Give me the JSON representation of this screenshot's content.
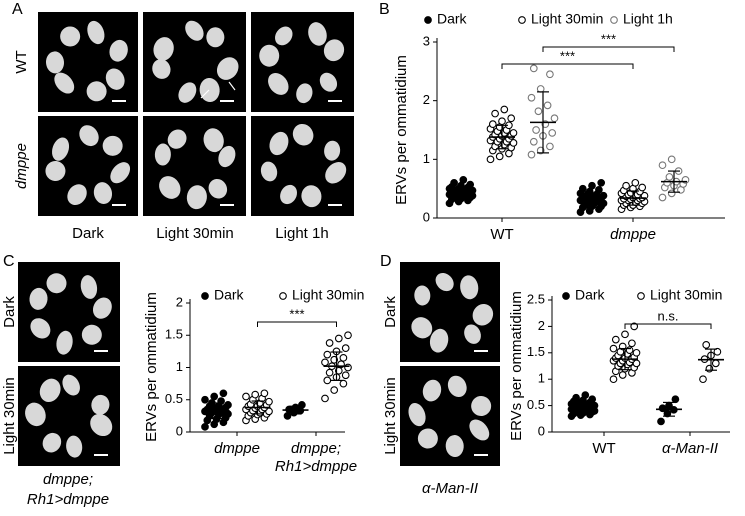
{
  "panels": {
    "A": {
      "letter": "A",
      "rows": [
        "WT",
        "dmppe"
      ],
      "columns": [
        "Dark",
        "Light 30min",
        "Light 1h"
      ]
    },
    "B": {
      "letter": "B"
    },
    "C": {
      "letter": "C",
      "rows": [
        "Dark",
        "Light 30min"
      ],
      "caption": [
        "dmppe;",
        "Rh1>dmppe"
      ]
    },
    "D": {
      "letter": "D",
      "rows": [
        "Dark",
        "Light 30min"
      ],
      "caption": [
        "α-Man-II"
      ]
    }
  },
  "chart_data": [
    {
      "type": "dotplot",
      "ylabel": "ERVs per ommatidium",
      "categories": [
        "WT",
        "dmppe"
      ],
      "italic_categories": [
        false,
        true
      ],
      "ylim": [
        0,
        3
      ],
      "yticks": [
        0,
        1,
        2,
        3
      ],
      "series": [
        {
          "name": "Dark",
          "color": "#000000",
          "marker": "filled",
          "values": [
            [
              0.25,
              0.28,
              0.3,
              0.32,
              0.33,
              0.35,
              0.35,
              0.37,
              0.38,
              0.4,
              0.4,
              0.4,
              0.42,
              0.42,
              0.43,
              0.43,
              0.45,
              0.45,
              0.45,
              0.47,
              0.47,
              0.48,
              0.5,
              0.5,
              0.52,
              0.53,
              0.55,
              0.57,
              0.6,
              0.65
            ],
            [
              0.1,
              0.12,
              0.15,
              0.18,
              0.2,
              0.2,
              0.22,
              0.25,
              0.25,
              0.27,
              0.28,
              0.3,
              0.3,
              0.3,
              0.32,
              0.33,
              0.35,
              0.35,
              0.37,
              0.38,
              0.4,
              0.4,
              0.42,
              0.45,
              0.48,
              0.5,
              0.55,
              0.6
            ]
          ],
          "mean": [
            0.43,
            0.3
          ],
          "sd": [
            0.1,
            0.12
          ]
        },
        {
          "name": "Light 30min",
          "color": "#000000",
          "marker": "open",
          "values": [
            [
              1.0,
              1.05,
              1.1,
              1.15,
              1.18,
              1.2,
              1.22,
              1.25,
              1.28,
              1.3,
              1.3,
              1.32,
              1.35,
              1.35,
              1.38,
              1.4,
              1.4,
              1.42,
              1.45,
              1.45,
              1.48,
              1.5,
              1.52,
              1.55,
              1.58,
              1.6,
              1.65,
              1.7,
              1.78,
              1.85
            ],
            [
              0.15,
              0.18,
              0.2,
              0.22,
              0.22,
              0.25,
              0.25,
              0.27,
              0.28,
              0.3,
              0.3,
              0.3,
              0.32,
              0.33,
              0.33,
              0.35,
              0.35,
              0.37,
              0.38,
              0.38,
              0.4,
              0.4,
              0.42,
              0.43,
              0.45,
              0.47,
              0.5,
              0.52,
              0.55,
              0.6
            ]
          ],
          "mean": [
            1.38,
            0.34
          ],
          "sd": [
            0.2,
            0.12
          ]
        },
        {
          "name": "Light 1h",
          "color": "#777777",
          "marker": "open",
          "values": [
            [
              1.08,
              1.15,
              1.22,
              1.3,
              1.4,
              1.45,
              1.5,
              1.6,
              1.7,
              1.82,
              1.92,
              2.05,
              2.2,
              2.45,
              2.55
            ],
            [
              0.35,
              0.42,
              0.48,
              0.52,
              0.55,
              0.58,
              0.6,
              0.62,
              0.65,
              0.7,
              0.8,
              0.9,
              1.0
            ]
          ],
          "mean": [
            1.63,
            0.62
          ],
          "sd": [
            0.52,
            0.18
          ]
        }
      ],
      "annotations": [
        {
          "label": "***",
          "from": {
            "series": 1,
            "category": 0
          },
          "to": {
            "series": 1,
            "category": 1
          }
        },
        {
          "label": "***",
          "from": {
            "series": 2,
            "category": 0
          },
          "to": {
            "series": 2,
            "category": 1
          }
        }
      ]
    },
    {
      "type": "dotplot",
      "ylabel": "ERVs per ommatidium",
      "categories": [
        [
          "dmppe"
        ],
        [
          "dmppe;",
          "Rh1>dmppe"
        ]
      ],
      "italic_categories": [
        true,
        true
      ],
      "ylim": [
        0,
        2
      ],
      "yticks": [
        0,
        0.5,
        1,
        1.5,
        2
      ],
      "series": [
        {
          "name": "Dark",
          "color": "#000000",
          "marker": "filled",
          "values": [
            [
              0.08,
              0.12,
              0.15,
              0.18,
              0.2,
              0.22,
              0.25,
              0.27,
              0.28,
              0.3,
              0.3,
              0.32,
              0.33,
              0.35,
              0.35,
              0.37,
              0.38,
              0.4,
              0.4,
              0.42,
              0.45,
              0.48,
              0.5,
              0.55,
              0.6
            ],
            [
              0.25,
              0.3,
              0.33,
              0.35,
              0.38,
              0.42
            ]
          ],
          "mean": [
            0.33,
            0.34
          ],
          "sd": [
            0.12,
            0.06
          ]
        },
        {
          "name": "Light 30min",
          "color": "#000000",
          "marker": "open",
          "values": [
            [
              0.18,
              0.2,
              0.22,
              0.25,
              0.27,
              0.28,
              0.3,
              0.3,
              0.32,
              0.33,
              0.35,
              0.35,
              0.37,
              0.38,
              0.4,
              0.4,
              0.42,
              0.43,
              0.45,
              0.47,
              0.5,
              0.52,
              0.55,
              0.58,
              0.6
            ],
            [
              0.52,
              0.65,
              0.75,
              0.8,
              0.85,
              0.88,
              0.92,
              0.95,
              1.0,
              1.02,
              1.05,
              1.08,
              1.12,
              1.15,
              1.2,
              1.25,
              1.3,
              1.38,
              1.45,
              1.5
            ]
          ],
          "mean": [
            0.38,
            1.02
          ],
          "sd": [
            0.1,
            0.22
          ]
        }
      ],
      "annotations": [
        {
          "label": "***",
          "from": {
            "series": 1,
            "category": 0
          },
          "to": {
            "series": 1,
            "category": 1
          }
        }
      ]
    },
    {
      "type": "dotplot",
      "ylabel": "ERVs per ommatidium",
      "categories": [
        "WT",
        "α-Man-II"
      ],
      "italic_categories": [
        false,
        true
      ],
      "ylim": [
        0,
        2.5
      ],
      "yticks": [
        0,
        0.5,
        1,
        1.5,
        2,
        2.5
      ],
      "series": [
        {
          "name": "Dark",
          "color": "#000000",
          "marker": "filled",
          "values": [
            [
              0.3,
              0.32,
              0.33,
              0.35,
              0.36,
              0.38,
              0.38,
              0.4,
              0.4,
              0.42,
              0.42,
              0.43,
              0.44,
              0.45,
              0.45,
              0.46,
              0.47,
              0.48,
              0.48,
              0.5,
              0.5,
              0.52,
              0.53,
              0.55,
              0.56,
              0.58,
              0.6,
              0.62,
              0.65,
              0.7
            ],
            [
              0.2,
              0.35,
              0.42,
              0.45,
              0.5,
              0.62
            ]
          ],
          "mean": [
            0.45,
            0.43
          ],
          "sd": [
            0.1,
            0.13
          ]
        },
        {
          "name": "Light 30min",
          "color": "#000000",
          "marker": "open",
          "values": [
            [
              1.0,
              1.08,
              1.12,
              1.15,
              1.2,
              1.22,
              1.25,
              1.28,
              1.3,
              1.3,
              1.32,
              1.35,
              1.35,
              1.38,
              1.4,
              1.4,
              1.42,
              1.45,
              1.48,
              1.5,
              1.52,
              1.55,
              1.58,
              1.62,
              1.68,
              1.75,
              1.85,
              2.0
            ],
            [
              1.0,
              1.2,
              1.3,
              1.38,
              1.45,
              1.52,
              1.65
            ]
          ],
          "mean": [
            1.38,
            1.37
          ],
          "sd": [
            0.2,
            0.2
          ]
        }
      ],
      "annotations": [
        {
          "label": "n.s.",
          "from": {
            "series": 1,
            "category": 0
          },
          "to": {
            "series": 1,
            "category": 1
          }
        }
      ]
    }
  ]
}
